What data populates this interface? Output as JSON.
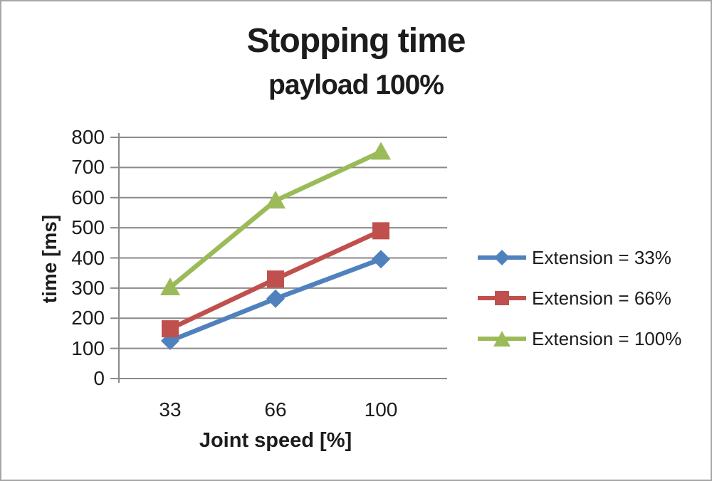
{
  "chart_data": {
    "type": "line",
    "title": "Stopping time",
    "subtitle": "payload 100%",
    "xlabel": "Joint speed [%]",
    "ylabel": "time [ms]",
    "categories": [
      "33",
      "66",
      "100"
    ],
    "ylim": [
      0,
      800
    ],
    "ytick_step": 100,
    "grid": true,
    "legend_position": "right",
    "series": [
      {
        "name": "Extension = 33%",
        "marker": "diamond",
        "color": "#4F81BD",
        "values": [
          125,
          265,
          396
        ]
      },
      {
        "name": "Extension = 66%",
        "marker": "square",
        "color": "#C0504D",
        "values": [
          165,
          330,
          490
        ]
      },
      {
        "name": "Extension = 100%",
        "marker": "triangle",
        "color": "#9BBB59",
        "values": [
          302,
          590,
          752
        ]
      }
    ],
    "colors": {
      "grid": "#8a8a8a",
      "axis": "#8a8a8a",
      "text": "#1c1c1c",
      "background": "#ffffff",
      "frame_border": "#a6a6a6"
    }
  }
}
